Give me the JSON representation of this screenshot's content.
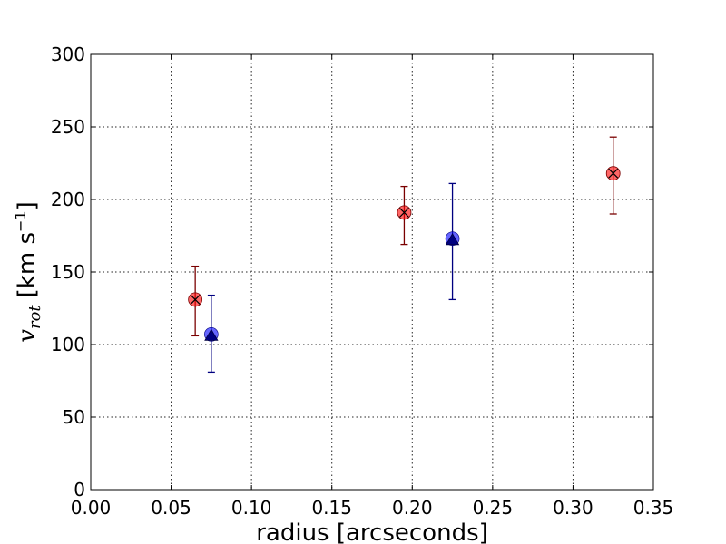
{
  "chart_data": {
    "type": "scatter",
    "xlabel": "radius [arcseconds]",
    "ylabel_symbol": "v",
    "ylabel_subscript": "rot",
    "ylabel_unit_prefix": "[km s",
    "ylabel_unit_exp": "−1",
    "ylabel_unit_suffix": "]",
    "xlim": [
      0.0,
      0.35
    ],
    "ylim": [
      0,
      300
    ],
    "xticks": [
      0.0,
      0.05,
      0.1,
      0.15,
      0.2,
      0.25,
      0.3,
      0.35
    ],
    "xtick_labels": [
      "0.00",
      "0.05",
      "0.10",
      "0.15",
      "0.20",
      "0.25",
      "0.30",
      "0.35"
    ],
    "yticks": [
      0,
      50,
      100,
      150,
      200,
      250,
      300
    ],
    "ytick_labels": [
      "0",
      "50",
      "100",
      "150",
      "200",
      "250",
      "300"
    ],
    "grid": true,
    "series": [
      {
        "marker": "circle-x",
        "color": "#ff0000",
        "edge_color": "#7a0000",
        "points": [
          {
            "x": 0.065,
            "y": 131,
            "yerr_low": 106,
            "yerr_high": 154
          },
          {
            "x": 0.195,
            "y": 191,
            "yerr_low": 169,
            "yerr_high": 209
          },
          {
            "x": 0.325,
            "y": 218,
            "yerr_low": 190,
            "yerr_high": 243
          }
        ]
      },
      {
        "marker": "circle",
        "color": "#0000ff",
        "edge_color": "#000080",
        "points": [
          {
            "x": 0.075,
            "y": 107,
            "yerr_low": 81,
            "yerr_high": 134
          },
          {
            "x": 0.225,
            "y": 173,
            "yerr_low": 131,
            "yerr_high": 211
          }
        ]
      },
      {
        "marker": "triangle",
        "color": "#000080",
        "edge_color": "#000040",
        "points": [
          {
            "x": 0.075,
            "y": 106
          },
          {
            "x": 0.225,
            "y": 172
          }
        ]
      }
    ]
  }
}
